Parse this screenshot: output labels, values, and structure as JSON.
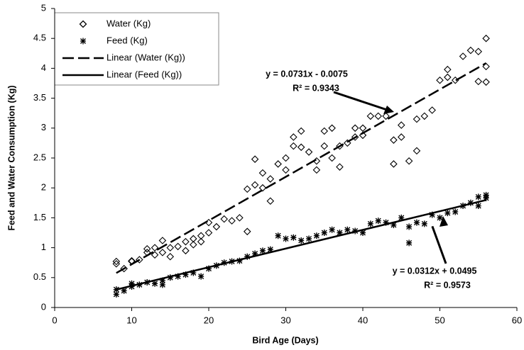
{
  "chart_data": {
    "type": "scatter",
    "x_label": "Bird Age (Days)",
    "y_label": "Feed and Water Consumption (Kg)",
    "xlim": [
      0,
      60
    ],
    "xticks": [
      0,
      10,
      20,
      30,
      40,
      50,
      60
    ],
    "ylim": [
      0,
      5
    ],
    "yticks": [
      0,
      0.5,
      1,
      1.5,
      2,
      2.5,
      3,
      3.5,
      4,
      4.5,
      5
    ],
    "grid": false,
    "legend": "upper-left",
    "annotations": [
      "y = 0.0731x - 0.0075",
      "R² = 0.9343",
      "y = 0.0312x + 0.0495",
      "R² = 0.9573"
    ],
    "series": [
      {
        "name": "Water (Kg)",
        "marker": "diamond",
        "color": "#000000",
        "x": [
          8,
          8,
          9,
          10,
          10,
          11,
          12,
          12,
          13,
          13,
          14,
          14,
          15,
          15,
          16,
          17,
          17,
          18,
          18,
          19,
          19,
          20,
          20,
          21,
          22,
          23,
          24,
          25,
          25,
          26,
          26,
          27,
          27,
          28,
          28,
          29,
          30,
          30,
          31,
          31,
          32,
          32,
          33,
          34,
          34,
          35,
          35,
          36,
          36,
          37,
          37,
          38,
          39,
          39,
          40,
          40,
          41,
          42,
          43,
          44,
          44,
          45,
          45,
          46,
          47,
          47,
          48,
          49,
          50,
          51,
          51,
          52,
          53,
          54,
          55,
          55,
          56,
          56,
          56
        ],
        "values": [
          0.77,
          0.73,
          0.65,
          0.78,
          0.77,
          0.8,
          0.98,
          0.92,
          0.88,
          1.0,
          1.12,
          0.92,
          1.0,
          0.85,
          1.02,
          1.1,
          0.95,
          1.15,
          1.05,
          1.2,
          1.1,
          1.42,
          1.25,
          1.35,
          1.48,
          1.45,
          1.5,
          1.98,
          1.27,
          2.48,
          2.05,
          2.25,
          2.0,
          1.78,
          2.15,
          2.4,
          2.5,
          2.3,
          2.85,
          2.7,
          2.95,
          2.68,
          2.6,
          2.45,
          2.3,
          2.95,
          2.7,
          3.0,
          2.5,
          2.7,
          2.35,
          2.75,
          3.0,
          2.85,
          3.0,
          2.88,
          3.2,
          3.2,
          3.2,
          2.8,
          2.4,
          3.05,
          2.85,
          2.45,
          2.62,
          3.15,
          3.2,
          3.3,
          3.8,
          3.98,
          3.85,
          3.8,
          4.2,
          4.3,
          4.28,
          3.78,
          4.5,
          4.03,
          3.77
        ]
      },
      {
        "name": "Feed (Kg)",
        "marker": "asterisk",
        "color": "#000000",
        "x": [
          8,
          8,
          9,
          10,
          10,
          11,
          12,
          13,
          14,
          14,
          15,
          16,
          17,
          18,
          19,
          20,
          21,
          22,
          23,
          24,
          25,
          26,
          27,
          28,
          29,
          30,
          31,
          32,
          33,
          34,
          35,
          36,
          37,
          38,
          39,
          40,
          41,
          42,
          43,
          44,
          45,
          46,
          46,
          47,
          48,
          49,
          50,
          51,
          52,
          53,
          54,
          55,
          55,
          56,
          56
        ],
        "values": [
          0.22,
          0.3,
          0.28,
          0.35,
          0.4,
          0.38,
          0.42,
          0.4,
          0.45,
          0.38,
          0.5,
          0.52,
          0.55,
          0.58,
          0.52,
          0.65,
          0.7,
          0.75,
          0.77,
          0.78,
          0.85,
          0.9,
          0.95,
          0.97,
          1.2,
          1.15,
          1.17,
          1.12,
          1.15,
          1.2,
          1.25,
          1.3,
          1.25,
          1.3,
          1.28,
          1.25,
          1.4,
          1.45,
          1.42,
          1.38,
          1.5,
          1.35,
          1.08,
          1.42,
          1.4,
          1.55,
          1.5,
          1.58,
          1.6,
          1.7,
          1.75,
          1.85,
          1.7,
          1.88,
          1.83
        ]
      },
      {
        "name": "Linear (Water (Kg))",
        "marker": "dashed-line",
        "color": "#000000",
        "x": [
          8,
          56
        ],
        "values": [
          0.577,
          4.086
        ]
      },
      {
        "name": "Linear (Feed (Kg))",
        "marker": "solid-line",
        "color": "#000000",
        "x": [
          8,
          56
        ],
        "values": [
          0.299,
          1.797
        ]
      }
    ]
  }
}
